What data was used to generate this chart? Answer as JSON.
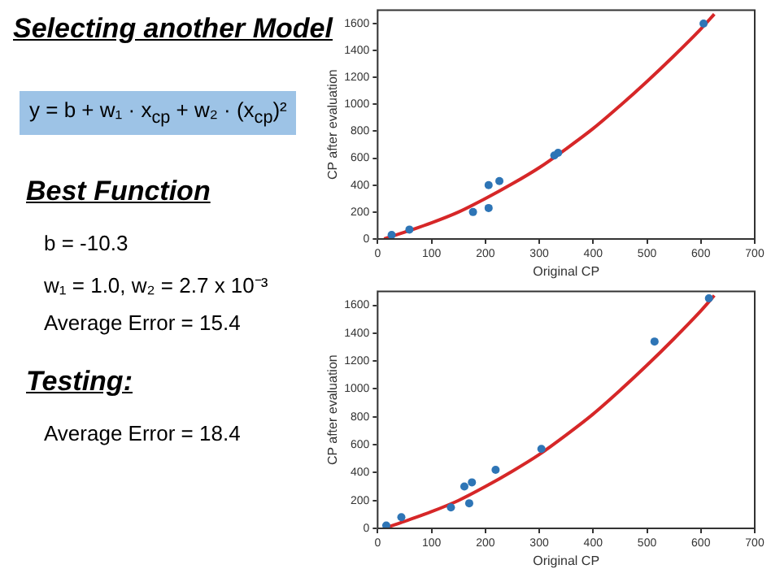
{
  "chart_data": [
    {
      "type": "other",
      "title": "Selecting another Model",
      "annotations": [
        "y = b + w₁ · x$_{cp}$ + w₂ · (x$_{cp}$)²",
        "Best Function",
        "b = -10.3",
        "w₁ = 1.0, w₂ = 2.7 x 10⁻³",
        "Average Error = 15.4",
        "Testing:",
        "Average Error = 18.4"
      ]
    },
    {
      "type": "scatter",
      "xlabel": "Original CP",
      "ylabel": "CP after evaluation",
      "xlim": [
        0,
        700
      ],
      "ylim": [
        0,
        1700
      ],
      "xticks": [
        0,
        100,
        200,
        300,
        400,
        500,
        600,
        700
      ],
      "yticks": [
        0,
        200,
        400,
        600,
        800,
        1000,
        1200,
        1400,
        1600
      ],
      "grid": false,
      "legend": false,
      "series": [
        {
          "type": "scatter",
          "marker": "circle",
          "color": "#2e75b6",
          "x": [
            26,
            59,
            177,
            206,
            206,
            226,
            328,
            335,
            605
          ],
          "values": [
            30,
            70,
            200,
            400,
            230,
            430,
            620,
            640,
            1600
          ]
        },
        {
          "type": "line",
          "marker": "none",
          "color": "#d62728",
          "line_style": "solid",
          "x": [
            12,
            50,
            100,
            150,
            200,
            250,
            300,
            350,
            400,
            450,
            500,
            550,
            600,
            625
          ],
          "values": [
            0,
            50,
            120,
            200,
            300,
            410,
            530,
            670,
            820,
            990,
            1170,
            1360,
            1560,
            1670
          ]
        }
      ]
    },
    {
      "type": "scatter",
      "xlabel": "Original CP",
      "ylabel": "CP after evaluation",
      "xlim": [
        0,
        700
      ],
      "ylim": [
        0,
        1700
      ],
      "xticks": [
        0,
        100,
        200,
        300,
        400,
        500,
        600,
        700
      ],
      "yticks": [
        0,
        200,
        400,
        600,
        800,
        1000,
        1200,
        1400,
        1600
      ],
      "grid": false,
      "legend": false,
      "series": [
        {
          "type": "scatter",
          "marker": "circle",
          "color": "#2e75b6",
          "x": [
            16,
            44,
            136,
            161,
            175,
            170,
            219,
            304,
            514,
            615
          ],
          "values": [
            20,
            80,
            150,
            300,
            330,
            180,
            420,
            570,
            1340,
            1650
          ]
        },
        {
          "type": "line",
          "marker": "none",
          "color": "#d62728",
          "line_style": "solid",
          "x": [
            12,
            50,
            100,
            150,
            200,
            250,
            300,
            350,
            400,
            450,
            500,
            550,
            600,
            625
          ],
          "values": [
            0,
            50,
            120,
            200,
            300,
            410,
            530,
            670,
            820,
            990,
            1170,
            1360,
            1560,
            1670
          ]
        }
      ]
    }
  ]
}
